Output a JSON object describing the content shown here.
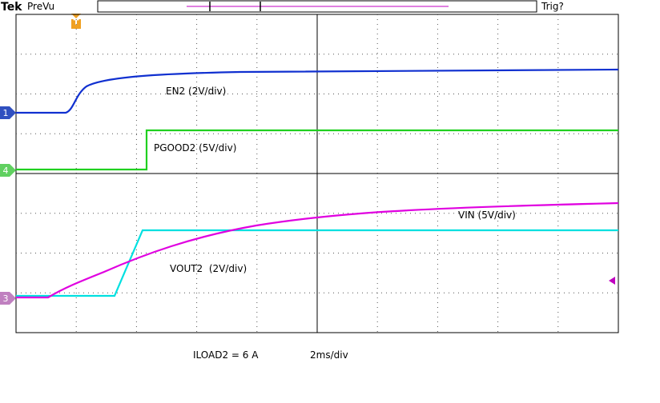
{
  "header": {
    "brand": "Tek",
    "status": "PreVu",
    "trigger": "Trig?",
    "trigger_marker": "T"
  },
  "markers": {
    "ch1": "1",
    "ch4": "4",
    "ch3": "3"
  },
  "traces": {
    "en2": "EN2 (2V/div)",
    "pgood2": "PGOOD2 (5V/div)",
    "vin": "VIN (5V/div)",
    "vout2": "VOUT2  (2V/div)"
  },
  "footer": {
    "load": "ILOAD2 = 6 A",
    "timebase": "2ms/div"
  }
}
